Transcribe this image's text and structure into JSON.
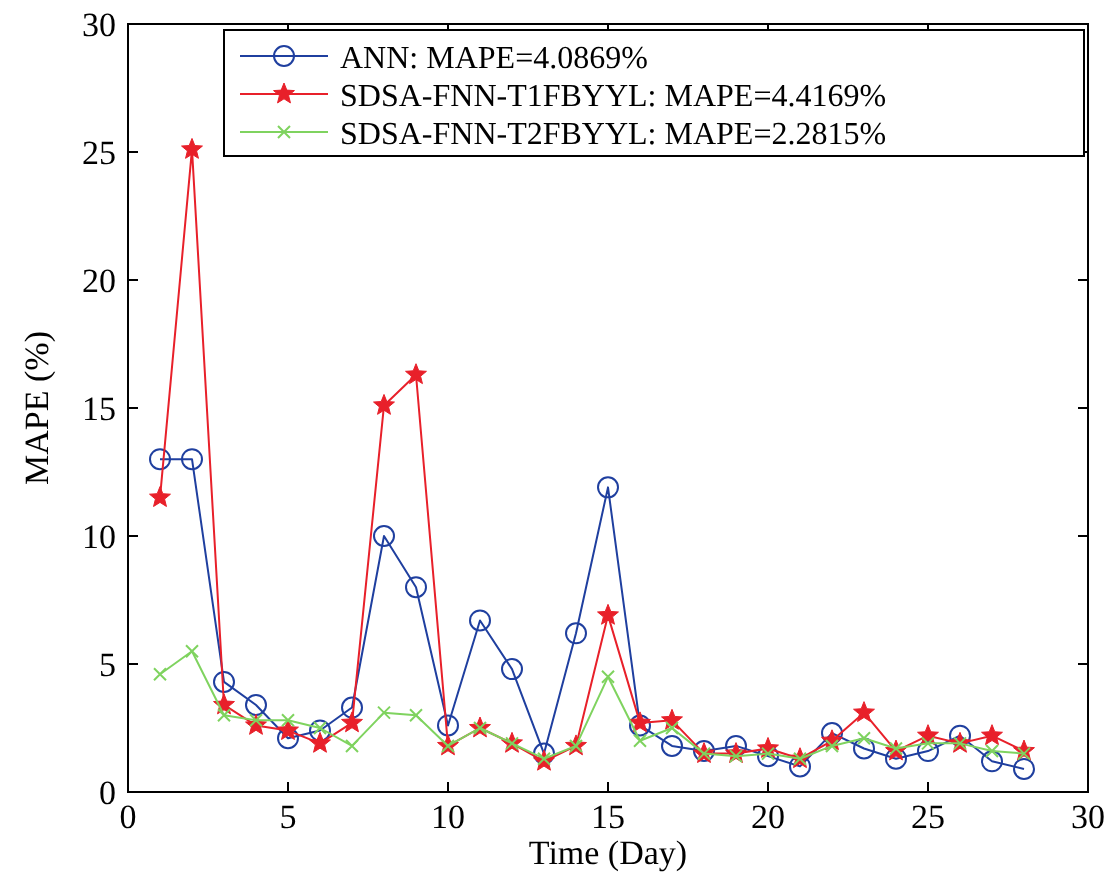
{
  "chart_data": {
    "type": "line",
    "xlabel": "Time (Day)",
    "ylabel": "MAPE (%)",
    "x": [
      1,
      2,
      3,
      4,
      5,
      6,
      7,
      8,
      9,
      10,
      11,
      12,
      13,
      14,
      15,
      16,
      17,
      18,
      19,
      20,
      21,
      22,
      23,
      24,
      25,
      26,
      27,
      28
    ],
    "xlim": [
      0,
      30
    ],
    "xticks": [
      0,
      5,
      10,
      15,
      20,
      25,
      30
    ],
    "ylim": [
      0,
      30
    ],
    "yticks": [
      0,
      5,
      10,
      15,
      20,
      25,
      30
    ],
    "grid": false,
    "legend": "top right",
    "series": [
      {
        "name": "ANN: MAPE=4.0869%",
        "color": "#1f3f9f",
        "marker": "circle",
        "values": [
          13,
          13,
          4.3,
          3.4,
          2.1,
          2.4,
          3.3,
          10,
          8,
          2.6,
          6.7,
          4.8,
          1.5,
          6.2,
          11.9,
          2.6,
          1.8,
          1.6,
          1.8,
          1.4,
          1.0,
          2.3,
          1.7,
          1.3,
          1.6,
          2.2,
          1.2,
          0.9
        ]
      },
      {
        "name": "SDSA-FNN-T1FBYYL: MAPE=4.4169%",
        "color": "#e8202a",
        "marker": "star",
        "values": [
          11.5,
          25.1,
          3.4,
          2.6,
          2.4,
          1.9,
          2.7,
          15.1,
          16.3,
          1.8,
          2.5,
          1.9,
          1.2,
          1.8,
          6.9,
          2.7,
          2.8,
          1.5,
          1.5,
          1.7,
          1.3,
          2.0,
          3.1,
          1.6,
          2.2,
          1.9,
          2.2,
          1.6
        ]
      },
      {
        "name": "SDSA-FNN-T2FBYYL: MAPE=2.2815%",
        "color": "#7fd35f",
        "marker": "cross",
        "values": [
          4.6,
          5.5,
          3.0,
          2.8,
          2.8,
          2.5,
          1.8,
          3.1,
          3.0,
          1.8,
          2.5,
          1.9,
          1.3,
          1.8,
          4.5,
          2.0,
          2.5,
          1.5,
          1.4,
          1.5,
          1.3,
          1.8,
          2.1,
          1.7,
          1.9,
          1.9,
          1.6,
          1.5
        ]
      }
    ]
  }
}
